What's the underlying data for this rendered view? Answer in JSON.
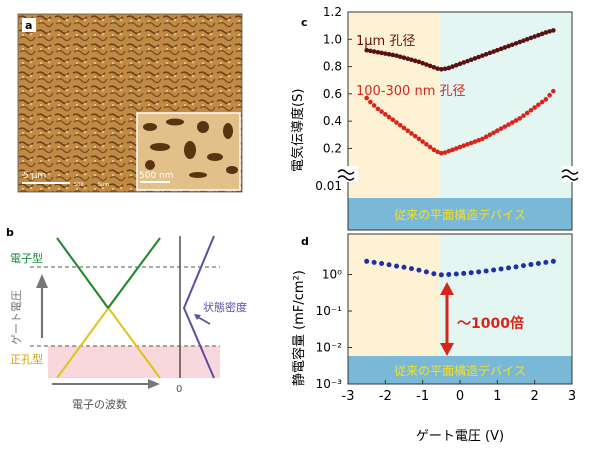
{
  "panel_a": {
    "letter": "a",
    "scale_main": "5 μm",
    "scale_inset": "500 nm",
    "tiny_scale_1": "500",
    "tiny_scale_2": "5μm"
  },
  "panel_b": {
    "letter": "b",
    "electron_type": "電子型",
    "hole_type": "正孔型",
    "gate_voltage": "ゲート電圧",
    "dos": "状態密度",
    "wavenumber": "電子の波数",
    "zero": "0",
    "colors": {
      "electron": "#1b8a3c",
      "hole": "#e0c21a",
      "dos": "#5a4ea0",
      "hole_fill": "#f8d8dc"
    }
  },
  "panel_c": {
    "letter": "c",
    "ylabel": "電気伝導度(S)",
    "label_1um": "1μm 孔径",
    "label_100nm": "100-300 nm 孔径",
    "conventional": "従来の平面構造デバイス",
    "break_tick": "0.01",
    "colors": {
      "series_1um": "#5a1010",
      "series_100nm": "#d8251c",
      "left_bg": "#fdf3d4",
      "right_bg": "#e4f6f2",
      "band": "#7ab8d8",
      "band_text": "#f4e020"
    }
  },
  "panel_d": {
    "letter": "d",
    "ylabel": "静電容量 (mF/cm²)",
    "xlabel": "ゲート電圧 (V)",
    "annotation": "～1000倍",
    "conventional": "従来の平面構造デバイス",
    "colors": {
      "series": "#1f2fa8",
      "arrow": "#d8251c"
    }
  },
  "chart_data": [
    {
      "type": "scatter",
      "panel": "c",
      "ylabel": "電気伝導度(S)",
      "y_ticks": [
        "0.2",
        "0.4",
        "0.6",
        "0.8",
        "1.0",
        "1.2"
      ],
      "ylim": [
        0.13,
        1.2
      ],
      "xlim": [
        -3,
        3
      ],
      "series": [
        {
          "name": "1μm 孔径",
          "x": [
            -2.5,
            -2.4,
            -2.3,
            -2.2,
            -2.1,
            -2.0,
            -1.9,
            -1.8,
            -1.7,
            -1.6,
            -1.5,
            -1.4,
            -1.3,
            -1.2,
            -1.1,
            -1.0,
            -0.9,
            -0.8,
            -0.7,
            -0.6,
            -0.5,
            -0.4,
            -0.3,
            -0.2,
            -0.1,
            0.0,
            0.1,
            0.2,
            0.3,
            0.4,
            0.5,
            0.6,
            0.7,
            0.8,
            0.9,
            1.0,
            1.1,
            1.2,
            1.3,
            1.4,
            1.5,
            1.6,
            1.7,
            1.8,
            1.9,
            2.0,
            2.1,
            2.2,
            2.3,
            2.4,
            2.5
          ],
          "y": [
            0.92,
            0.915,
            0.91,
            0.905,
            0.9,
            0.895,
            0.89,
            0.885,
            0.88,
            0.872,
            0.865,
            0.857,
            0.85,
            0.842,
            0.835,
            0.825,
            0.815,
            0.805,
            0.795,
            0.785,
            0.78,
            0.784,
            0.79,
            0.8,
            0.81,
            0.82,
            0.83,
            0.84,
            0.85,
            0.86,
            0.87,
            0.88,
            0.89,
            0.9,
            0.91,
            0.92,
            0.93,
            0.94,
            0.95,
            0.96,
            0.97,
            0.98,
            0.99,
            1.0,
            1.01,
            1.02,
            1.03,
            1.04,
            1.05,
            1.058,
            1.065
          ]
        },
        {
          "name": "100-300 nm 孔径",
          "x": [
            -2.5,
            -2.4,
            -2.3,
            -2.2,
            -2.1,
            -2.0,
            -1.9,
            -1.8,
            -1.7,
            -1.6,
            -1.5,
            -1.4,
            -1.3,
            -1.2,
            -1.1,
            -1.0,
            -0.9,
            -0.8,
            -0.7,
            -0.6,
            -0.5,
            -0.4,
            -0.3,
            -0.2,
            -0.1,
            0.0,
            0.1,
            0.2,
            0.3,
            0.4,
            0.5,
            0.6,
            0.7,
            0.8,
            0.9,
            1.0,
            1.1,
            1.2,
            1.3,
            1.4,
            1.5,
            1.6,
            1.7,
            1.8,
            1.9,
            2.0,
            2.1,
            2.2,
            2.3,
            2.4,
            2.5
          ],
          "y": [
            0.57,
            0.54,
            0.515,
            0.49,
            0.47,
            0.45,
            0.43,
            0.41,
            0.39,
            0.37,
            0.35,
            0.33,
            0.31,
            0.29,
            0.27,
            0.25,
            0.23,
            0.21,
            0.19,
            0.175,
            0.165,
            0.17,
            0.18,
            0.19,
            0.2,
            0.21,
            0.22,
            0.23,
            0.24,
            0.25,
            0.26,
            0.27,
            0.285,
            0.3,
            0.315,
            0.33,
            0.345,
            0.36,
            0.375,
            0.39,
            0.405,
            0.42,
            0.44,
            0.46,
            0.48,
            0.5,
            0.52,
            0.54,
            0.56,
            0.59,
            0.62
          ]
        }
      ]
    },
    {
      "type": "scatter",
      "panel": "d",
      "ylabel": "静電容量 (mF/cm²)",
      "xlabel": "ゲート電圧 (V)",
      "y_scale": "log",
      "ylim": [
        0.001,
        10
      ],
      "xlim": [
        -3,
        3
      ],
      "x_ticks": [
        "-3",
        "-2",
        "-1",
        "0",
        "1",
        "2",
        "3"
      ],
      "y_ticks": [
        "10⁰",
        "10⁻¹",
        "10⁻²",
        "10⁻³"
      ],
      "series": [
        {
          "name": "",
          "x": [
            -2.5,
            -2.3,
            -2.1,
            -1.9,
            -1.7,
            -1.5,
            -1.3,
            -1.1,
            -0.9,
            -0.7,
            -0.5,
            -0.3,
            -0.1,
            0.1,
            0.3,
            0.5,
            0.7,
            0.9,
            1.1,
            1.3,
            1.5,
            1.7,
            1.9,
            2.1,
            2.3,
            2.5
          ],
          "y": [
            2.3,
            2.15,
            2.0,
            1.85,
            1.7,
            1.58,
            1.45,
            1.32,
            1.18,
            1.05,
            0.98,
            1.0,
            1.03,
            1.07,
            1.12,
            1.18,
            1.25,
            1.33,
            1.42,
            1.52,
            1.62,
            1.75,
            1.88,
            2.0,
            2.15,
            2.3
          ]
        }
      ]
    }
  ]
}
